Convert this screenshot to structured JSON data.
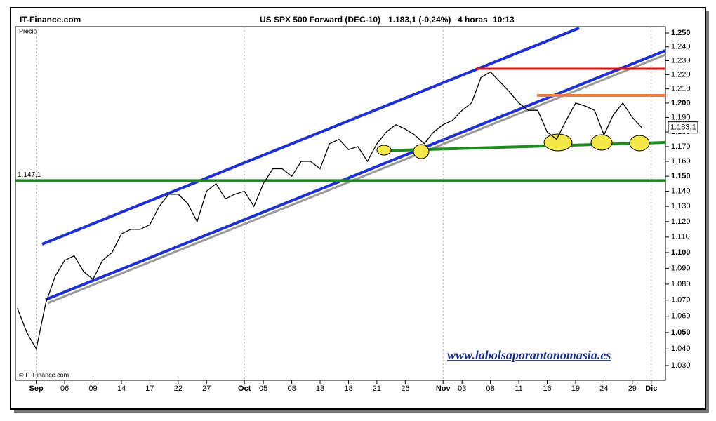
{
  "header": {
    "site": "IT-Finance.com",
    "instrument": "US SPX 500 Forward (DEC-10)",
    "quote": "1.183,1 (-0,24%)",
    "timeframe": "4 horas",
    "time": "10:13"
  },
  "chart_data": {
    "type": "line",
    "y_label": "Precio",
    "source": "© IT-Finance.com",
    "watermark": "www.labolsaporantonomasia.es",
    "log_scale": true,
    "x": [
      -2,
      -1,
      0,
      1,
      2,
      3,
      4,
      5,
      6,
      7,
      8,
      9,
      10,
      11,
      12,
      13,
      14,
      15,
      16,
      17,
      18,
      19,
      20,
      21,
      22,
      23,
      24,
      25,
      26,
      27,
      28,
      29,
      30,
      31,
      32,
      33,
      34,
      35,
      36,
      37,
      38,
      39,
      40,
      41,
      42,
      43,
      44,
      45,
      46,
      47,
      48,
      49,
      50,
      51,
      52,
      53,
      54,
      55,
      56,
      57,
      58,
      59,
      60,
      61,
      62,
      63,
      64
    ],
    "series": [
      {
        "name": "Precio",
        "color": "#000000",
        "values": [
          1.065,
          1.05,
          1.04,
          1.068,
          1.085,
          1.095,
          1.098,
          1.088,
          1.083,
          1.095,
          1.1,
          1.112,
          1.115,
          1.115,
          1.118,
          1.13,
          1.138,
          1.138,
          1.132,
          1.12,
          1.14,
          1.145,
          1.135,
          1.138,
          1.14,
          1.13,
          1.145,
          1.155,
          1.155,
          1.15,
          1.16,
          1.16,
          1.155,
          1.172,
          1.175,
          1.168,
          1.17,
          1.16,
          1.172,
          1.18,
          1.185,
          1.182,
          1.178,
          1.172,
          1.18,
          1.185,
          1.188,
          1.195,
          1.2,
          1.218,
          1.222,
          1.215,
          1.208,
          1.2,
          1.195,
          1.195,
          1.18,
          1.175,
          1.188,
          1.2,
          1.198,
          1.195,
          1.178,
          1.192,
          1.2,
          1.19,
          1.183
        ]
      }
    ],
    "xlim": [
      -2.2,
      66.5
    ],
    "xticks": [
      {
        "value": 0,
        "label": "Sep"
      },
      {
        "value": 3,
        "label": "06"
      },
      {
        "value": 6,
        "label": "09"
      },
      {
        "value": 9,
        "label": "14"
      },
      {
        "value": 12,
        "label": "17"
      },
      {
        "value": 15,
        "label": "22"
      },
      {
        "value": 18,
        "label": "27"
      },
      {
        "value": 22,
        "label": "Oct"
      },
      {
        "value": 24,
        "label": "05"
      },
      {
        "value": 27,
        "label": "08"
      },
      {
        "value": 30,
        "label": "13"
      },
      {
        "value": 33,
        "label": "18"
      },
      {
        "value": 36,
        "label": "21"
      },
      {
        "value": 39,
        "label": "26"
      },
      {
        "value": 43,
        "label": "Nov"
      },
      {
        "value": 45,
        "label": "03"
      },
      {
        "value": 48,
        "label": "08"
      },
      {
        "value": 51,
        "label": "11"
      },
      {
        "value": 54,
        "label": "16"
      },
      {
        "value": 57,
        "label": "19"
      },
      {
        "value": 60,
        "label": "24"
      },
      {
        "value": 63,
        "label": "29"
      },
      {
        "value": 65,
        "label": "Dic"
      }
    ],
    "ylim": [
      1.0212,
      1.2546
    ],
    "yticks": [
      {
        "value": 1.25,
        "label": "1.250"
      },
      {
        "value": 1.24,
        "label": "1.240"
      },
      {
        "value": 1.23,
        "label": "1.230"
      },
      {
        "value": 1.22,
        "label": "1.220"
      },
      {
        "value": 1.21,
        "label": "1.210"
      },
      {
        "value": 1.2,
        "label": "1.200"
      },
      {
        "value": 1.19,
        "label": "1.190"
      },
      {
        "value": 1.18,
        "label": "1.180"
      },
      {
        "value": 1.17,
        "label": "1.170"
      },
      {
        "value": 1.16,
        "label": "1.160"
      },
      {
        "value": 1.15,
        "label": "1.150"
      },
      {
        "value": 1.14,
        "label": "1.140"
      },
      {
        "value": 1.13,
        "label": "1.130"
      },
      {
        "value": 1.12,
        "label": "1.120"
      },
      {
        "value": 1.11,
        "label": "1.110"
      },
      {
        "value": 1.1,
        "label": "1.100"
      },
      {
        "value": 1.09,
        "label": "1.090"
      },
      {
        "value": 1.08,
        "label": "1.080"
      },
      {
        "value": 1.07,
        "label": "1.070"
      },
      {
        "value": 1.06,
        "label": "1.060"
      },
      {
        "value": 1.05,
        "label": "1.050"
      },
      {
        "value": 1.04,
        "label": "1.040"
      },
      {
        "value": 1.03,
        "label": "1.030"
      }
    ],
    "level": {
      "value": 1.1471,
      "label": "1.147,1",
      "color": "#1f8a1f"
    },
    "last": {
      "value": 1.1831,
      "label": "1.183,1"
    }
  }
}
